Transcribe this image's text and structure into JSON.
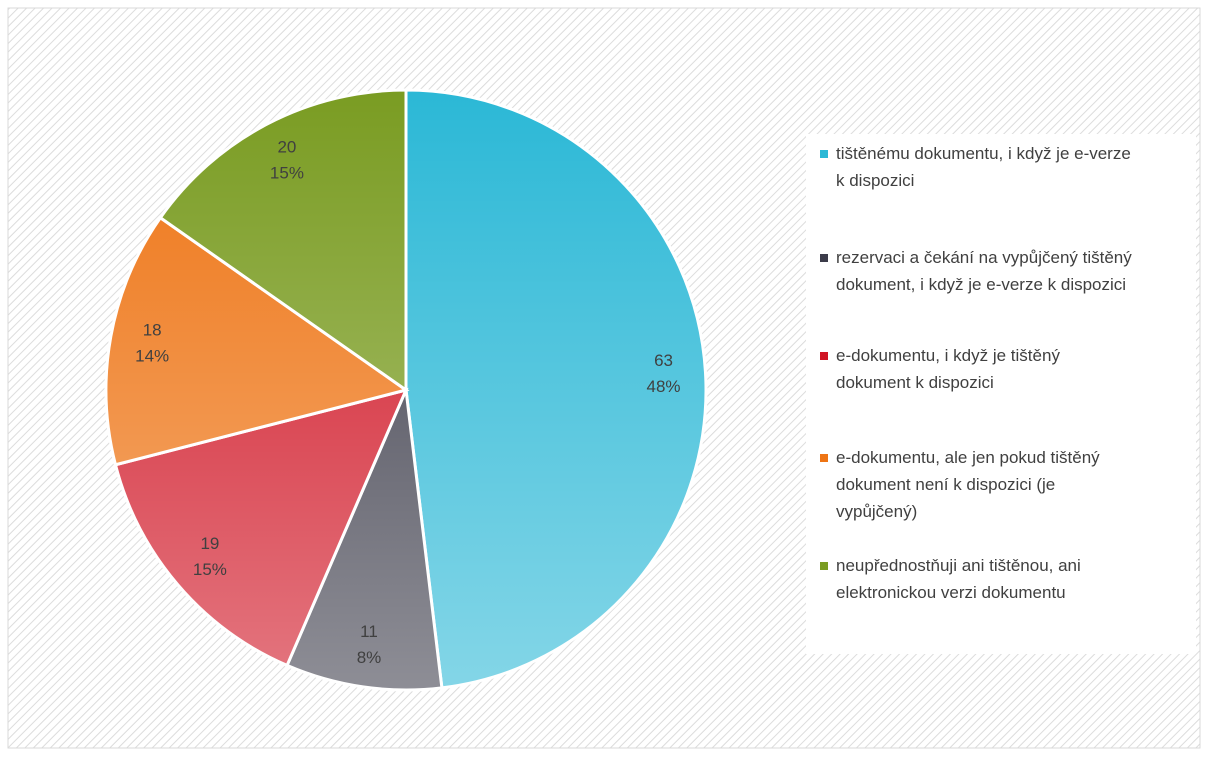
{
  "chart_data": {
    "type": "pie",
    "categories": [
      "tištěnému dokumentu, i když je e-verze k dispozici",
      "rezervaci a čekání na vypůjčený tištěný dokument, i když je e-verze k dispozici",
      "e-dokumentu, i když je tištěný dokument k dispozici",
      "e-dokumentu, ale jen pokud tištěný dokument není k dispozici (je vypůjčený)",
      "neupřednostňuji ani tištěnou, ani elektronickou verzi dokumentu"
    ],
    "values": [
      63,
      11,
      19,
      18,
      20
    ],
    "percent_labels": [
      "48%",
      "8%",
      "15%",
      "14%",
      "15%"
    ],
    "colors": [
      "#2bb8d6",
      "#3c3c4a",
      "#d01424",
      "#ee7414",
      "#7a9c22"
    ],
    "legend": "right"
  }
}
